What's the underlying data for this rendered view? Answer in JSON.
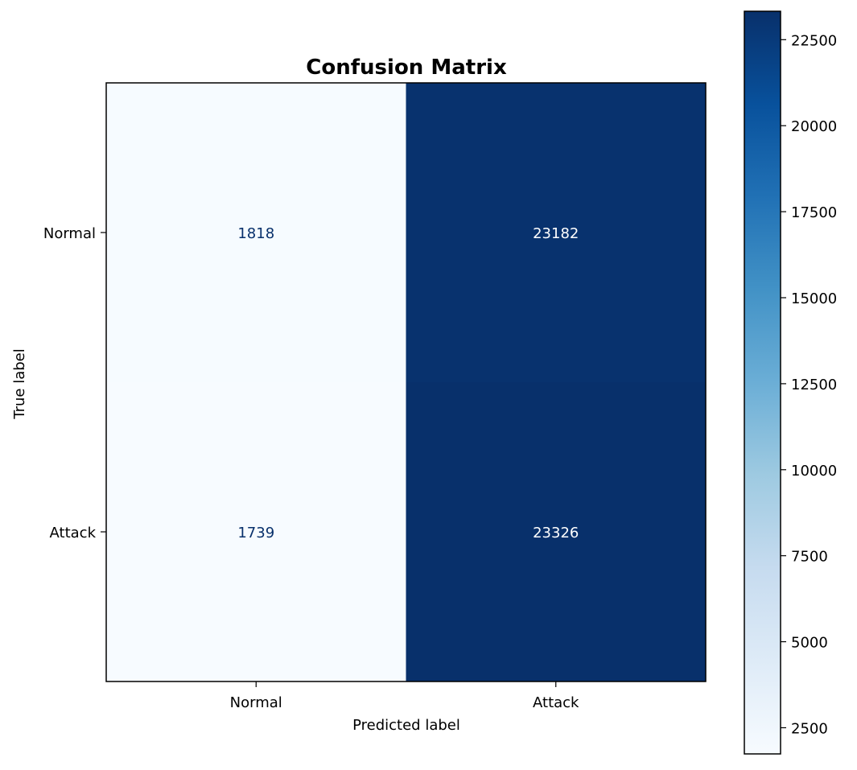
{
  "chart_data": {
    "type": "heatmap",
    "title": "Confusion Matrix",
    "xlabel": "Predicted label",
    "ylabel": "True label",
    "x_categories": [
      "Normal",
      "Attack"
    ],
    "y_categories": [
      "Normal",
      "Attack"
    ],
    "values": [
      [
        1818,
        23182
      ],
      [
        1739,
        23326
      ]
    ],
    "colormap": "Blues",
    "colorbar": {
      "min": 1739,
      "max": 23326,
      "ticks": [
        2500,
        5000,
        7500,
        10000,
        12500,
        15000,
        17500,
        20000,
        22500
      ]
    },
    "colors": {
      "low": "#f7fbff",
      "high": "#08306b",
      "text_dark": "#08306b",
      "text_light": "#ffffff"
    }
  }
}
